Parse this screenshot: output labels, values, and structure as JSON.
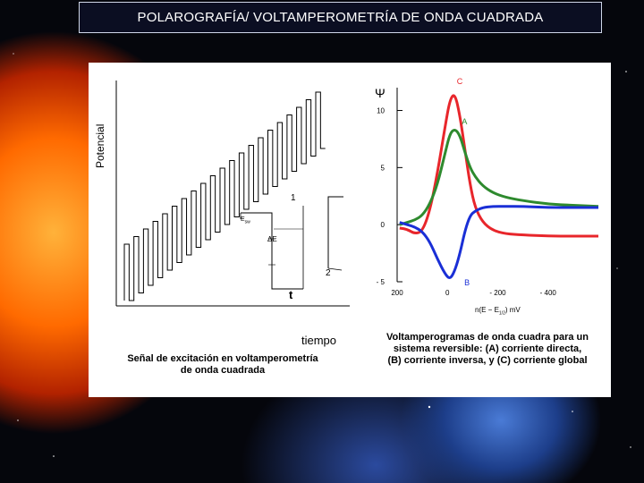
{
  "slide": {
    "title": "POLAROGRAFÍA/ VOLTAMPEROMETRÍA  DE ONDA CUADRADA"
  },
  "left_figure": {
    "y_axis_label": "Potencial",
    "x_axis_label": "tiempo",
    "inset_labels": {
      "step_marker": "E",
      "step_subscript": "s",
      "step_subscript2": "w",
      "delta_e": "ΔE",
      "pulse_1": "1",
      "pulse_2": "2",
      "period": "t"
    },
    "caption_line1": "Señal de excitación en voltamperometría",
    "caption_line2": "de onda cuadrada"
  },
  "right_figure": {
    "y_symbol": "Ψ",
    "x_label": "n(E − E",
    "x_label_sub": "1/2",
    "x_label_end": ") mV",
    "curve_labels": {
      "C": "C",
      "A": "A",
      "B": "B"
    },
    "caption_line1": "Voltamperogramas de onda cuadra para un",
    "caption_line2": "sistema reversible: (A) corriente directa,",
    "caption_line3": "(B) corriente inversa, y (C) corriente global"
  },
  "chart_data": {
    "type": "line",
    "title": "",
    "xlabel": "n(E − E1/2) mV",
    "ylabel": "Ψ",
    "x_ticks": [
      "200",
      "0",
      "- 200",
      "- 400"
    ],
    "y_ticks": [
      "10",
      "5",
      "0",
      "- 5"
    ],
    "xlim": [
      200,
      -600
    ],
    "ylim": [
      -5,
      12
    ],
    "series": [
      {
        "name": "C",
        "color": "#e8262b",
        "x": [
          190,
          160,
          130,
          100,
          70,
          40,
          10,
          -10,
          -30,
          -50,
          -70,
          -90,
          -110,
          -140,
          -180,
          -230,
          -300,
          -400,
          -500,
          -600
        ],
        "y": [
          -0.3,
          -0.4,
          -0.8,
          -0.6,
          1.2,
          4.5,
          8.5,
          11.0,
          11.5,
          9.5,
          6.5,
          3.5,
          1.5,
          0.2,
          -0.5,
          -0.8,
          -0.9,
          -1.0,
          -1.0,
          -1.0
        ]
      },
      {
        "name": "A",
        "color": "#2e8a2e",
        "x": [
          190,
          160,
          130,
          100,
          70,
          40,
          10,
          -10,
          -30,
          -50,
          -70,
          -90,
          -110,
          -140,
          -180,
          -230,
          -300,
          -400,
          -500,
          -600
        ],
        "y": [
          0.0,
          0.2,
          0.4,
          0.8,
          1.8,
          3.5,
          6.2,
          8.0,
          8.4,
          7.8,
          6.3,
          5.0,
          4.2,
          3.4,
          2.8,
          2.4,
          2.1,
          1.8,
          1.7,
          1.6
        ]
      },
      {
        "name": "B",
        "color": "#1a2fd6",
        "x": [
          190,
          160,
          130,
          100,
          70,
          40,
          10,
          -10,
          -30,
          -50,
          -70,
          -90,
          -110,
          -140,
          -180,
          -230,
          -300,
          -400,
          -500,
          -600
        ],
        "y": [
          0.2,
          0.0,
          -0.2,
          -0.6,
          -1.5,
          -3.0,
          -4.3,
          -4.8,
          -4.0,
          -2.5,
          -0.5,
          0.8,
          1.2,
          1.5,
          1.6,
          1.6,
          1.6,
          1.5,
          1.5,
          1.5
        ]
      }
    ]
  }
}
